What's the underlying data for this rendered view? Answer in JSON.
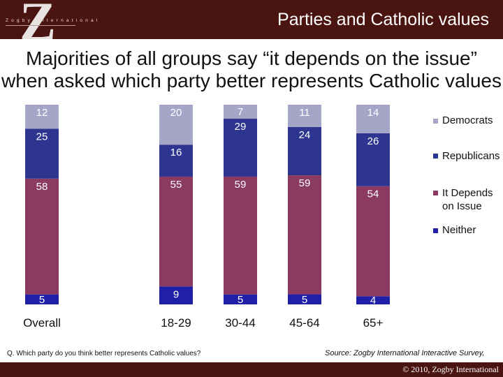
{
  "header": {
    "title": "Parties and Catholic values",
    "logo_letter": "Z",
    "logo_text": "Zogby International"
  },
  "headline": "Majorities of all groups say “it depends on the issue” when asked which party better represents Catholic values",
  "chart_data": {
    "type": "bar",
    "stacked": true,
    "percent_stacked": true,
    "categories": [
      "Overall",
      "18-29",
      "30-44",
      "45-64",
      "65+"
    ],
    "series": [
      {
        "name": "Neither",
        "values": [
          5,
          9,
          5,
          5,
          4
        ],
        "color": "#1f1fa8"
      },
      {
        "name": "It Depends on Issue",
        "values": [
          58,
          55,
          59,
          59,
          54
        ],
        "color": "#8b3a62"
      },
      {
        "name": "Republicans",
        "values": [
          25,
          16,
          29,
          24,
          26
        ],
        "color": "#2e3590"
      },
      {
        "name": "Democrats",
        "values": [
          12,
          20,
          7,
          11,
          14
        ],
        "color": "#a5a5c7"
      }
    ],
    "legend": {
      "placement": "right"
    },
    "grid": false
  },
  "legend_items": [
    {
      "label": "Democrats",
      "color": "#a5a5c7"
    },
    {
      "label": "Republicans",
      "color": "#2e3590"
    },
    {
      "label": "It Depends on Issue",
      "color": "#8b3a62"
    },
    {
      "label": "Neither",
      "color": "#1f1fa8"
    }
  ],
  "footnote": "Q. Which party do you think better represents Catholic values?",
  "source": "Source: Zogby International Interactive Survey,",
  "copyright": "© 2010, Zogby International"
}
